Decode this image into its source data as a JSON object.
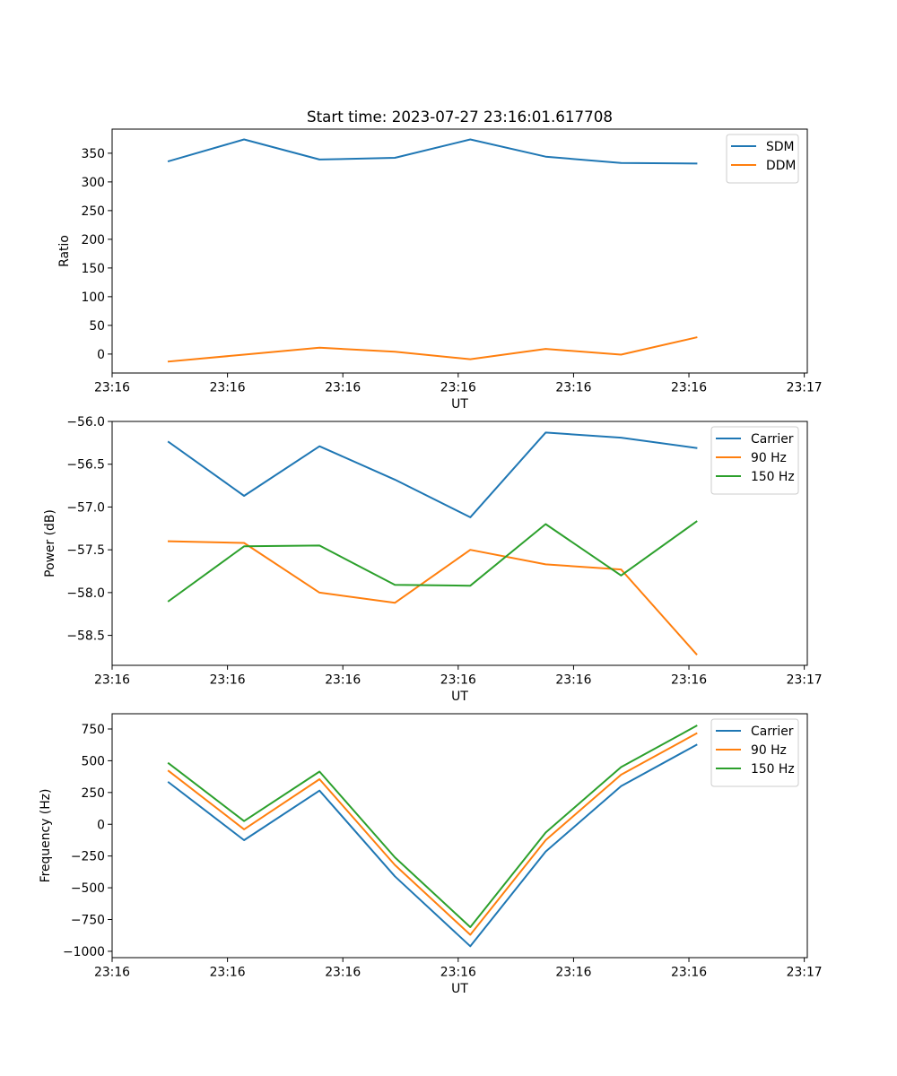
{
  "chart_data": [
    {
      "type": "line",
      "title": "Start time: 2023-07-27 23:16:01.617708",
      "xlabel": "UT",
      "ylabel": "Ratio",
      "x": [
        0,
        1,
        2,
        3,
        4,
        5,
        6,
        7
      ],
      "xlim": [
        -0.75,
        8.47
      ],
      "x_ticks": [
        -0.75,
        0.78,
        2.31,
        3.84,
        5.37,
        6.9,
        8.43
      ],
      "x_tick_labels": [
        "23:16",
        "23:16",
        "23:16",
        "23:16",
        "23:16",
        "23:16",
        "23:17"
      ],
      "ylim": [
        -33,
        392
      ],
      "y_ticks": [
        0,
        50,
        100,
        150,
        200,
        250,
        300,
        350
      ],
      "y_tick_labels": [
        "0",
        "50",
        "100",
        "150",
        "200",
        "250",
        "300",
        "350"
      ],
      "legend_position": "top-right",
      "grid": false,
      "series": [
        {
          "name": "SDM",
          "color": "#1f77b4",
          "values": [
            336,
            374,
            339,
            342,
            374,
            344,
            333,
            332
          ]
        },
        {
          "name": "DDM",
          "color": "#ff7f0e",
          "values": [
            -13,
            -1,
            11,
            4,
            -9,
            9,
            -1,
            29
          ]
        }
      ]
    },
    {
      "type": "line",
      "title": "",
      "xlabel": "UT",
      "ylabel": "Power (dB)",
      "x": [
        0,
        1,
        2,
        3,
        4,
        5,
        6,
        7
      ],
      "xlim": [
        -0.75,
        8.47
      ],
      "x_ticks": [
        -0.75,
        0.78,
        2.31,
        3.84,
        5.37,
        6.9,
        8.43
      ],
      "x_tick_labels": [
        "23:16",
        "23:16",
        "23:16",
        "23:16",
        "23:16",
        "23:16",
        "23:17"
      ],
      "ylim": [
        -58.85,
        -56.0
      ],
      "y_ticks": [
        -56.0,
        -56.5,
        -57.0,
        -57.5,
        -58.0,
        -58.5
      ],
      "y_tick_labels": [
        "−56.0",
        "−56.5",
        "−57.0",
        "−57.5",
        "−58.0",
        "−58.5"
      ],
      "legend_position": "top-right",
      "grid": false,
      "series": [
        {
          "name": "Carrier",
          "color": "#1f77b4",
          "values": [
            -56.24,
            -56.87,
            -56.29,
            -56.68,
            -57.12,
            -56.13,
            -56.19,
            -56.31
          ]
        },
        {
          "name": "90 Hz",
          "color": "#ff7f0e",
          "values": [
            -57.4,
            -57.42,
            -58.0,
            -58.12,
            -57.5,
            -57.67,
            -57.73,
            -58.72
          ]
        },
        {
          "name": "150 Hz",
          "color": "#2ca02c",
          "values": [
            -58.1,
            -57.46,
            -57.45,
            -57.91,
            -57.92,
            -57.2,
            -57.8,
            -57.17
          ]
        }
      ]
    },
    {
      "type": "line",
      "title": "",
      "xlabel": "UT",
      "ylabel": "Frequency (Hz)",
      "x": [
        0,
        1,
        2,
        3,
        4,
        5,
        6,
        7
      ],
      "xlim": [
        -0.75,
        8.47
      ],
      "x_ticks": [
        -0.75,
        0.78,
        2.31,
        3.84,
        5.37,
        6.9,
        8.43
      ],
      "x_tick_labels": [
        "23:16",
        "23:16",
        "23:16",
        "23:16",
        "23:16",
        "23:16",
        "23:17"
      ],
      "ylim": [
        -1050,
        870
      ],
      "y_ticks": [
        750,
        500,
        250,
        0,
        -250,
        -500,
        -750,
        -1000
      ],
      "y_tick_labels": [
        "750",
        "500",
        "250",
        "0",
        "−250",
        "−500",
        "−750",
        "−1000"
      ],
      "legend_position": "top-right",
      "grid": false,
      "series": [
        {
          "name": "Carrier",
          "color": "#1f77b4",
          "values": [
            330,
            -125,
            265,
            -410,
            -960,
            -215,
            300,
            625
          ]
        },
        {
          "name": "90 Hz",
          "color": "#ff7f0e",
          "values": [
            420,
            -40,
            355,
            -320,
            -870,
            -125,
            390,
            715
          ]
        },
        {
          "name": "150 Hz",
          "color": "#2ca02c",
          "values": [
            480,
            25,
            415,
            -260,
            -810,
            -65,
            450,
            775
          ]
        }
      ]
    }
  ]
}
